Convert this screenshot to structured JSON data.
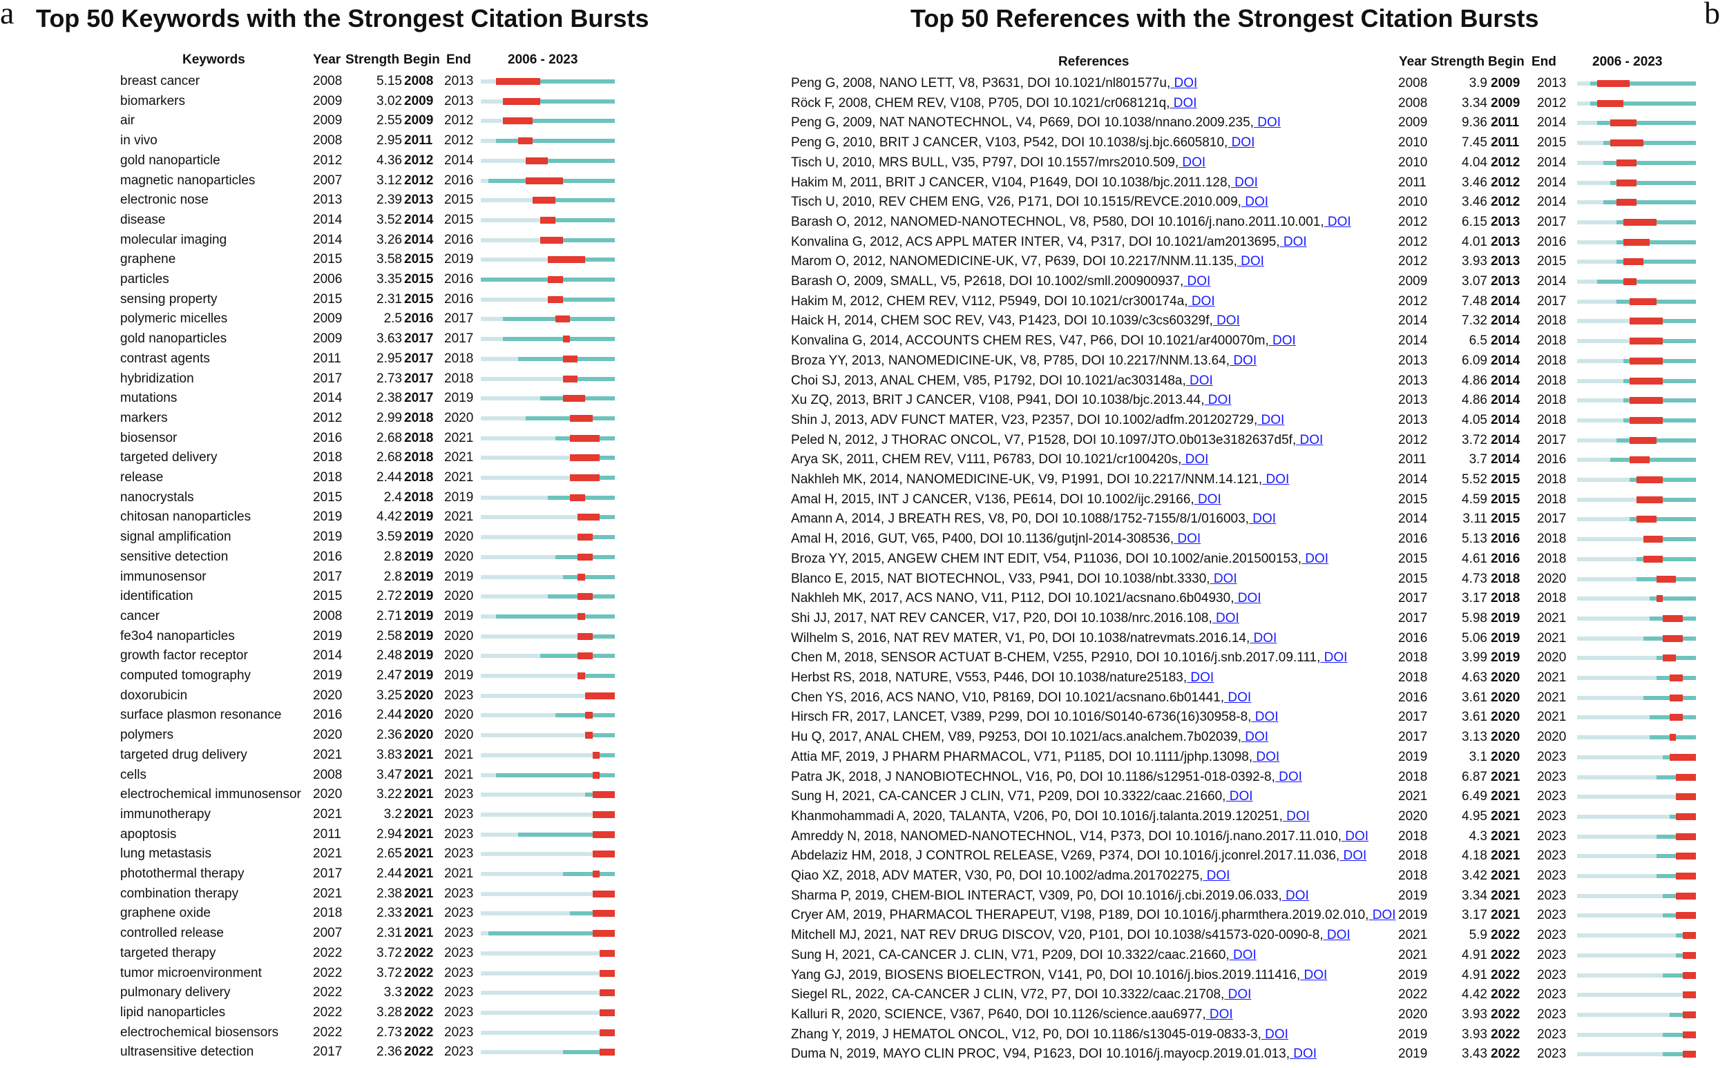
{
  "colors": {
    "baseline": "#cfe6e8",
    "published": "#6dc3bd",
    "burst": "#e43a2f",
    "doi": "#1a1aff"
  },
  "chart_data": [
    {
      "type": "table",
      "panel": "a",
      "title": "Top 50 Keywords with the Strongest Citation Bursts",
      "columns": [
        "Keywords",
        "Year",
        "Strength",
        "Begin",
        "End",
        "2006 - 2023"
      ],
      "range": [
        2006,
        2023
      ],
      "rows": [
        [
          "breast cancer",
          2008,
          "5.15",
          2008,
          2013
        ],
        [
          "biomarkers",
          2009,
          "3.02",
          2009,
          2013
        ],
        [
          "air",
          2009,
          "2.55",
          2009,
          2012
        ],
        [
          "in vivo",
          2008,
          "2.95",
          2011,
          2012
        ],
        [
          "gold nanoparticle",
          2012,
          "4.36",
          2012,
          2014
        ],
        [
          "magnetic nanoparticles",
          2007,
          "3.12",
          2012,
          2016
        ],
        [
          "electronic nose",
          2013,
          "2.39",
          2013,
          2015
        ],
        [
          "disease",
          2014,
          "3.52",
          2014,
          2015
        ],
        [
          "molecular imaging",
          2014,
          "3.26",
          2014,
          2016
        ],
        [
          "graphene",
          2015,
          "3.58",
          2015,
          2019
        ],
        [
          "particles",
          2006,
          "3.35",
          2015,
          2016
        ],
        [
          "sensing property",
          2015,
          "2.31",
          2015,
          2016
        ],
        [
          "polymeric micelles",
          2009,
          "2.5",
          2016,
          2017
        ],
        [
          "gold nanoparticles",
          2009,
          "3.63",
          2017,
          2017
        ],
        [
          "contrast agents",
          2011,
          "2.95",
          2017,
          2018
        ],
        [
          "hybridization",
          2017,
          "2.73",
          2017,
          2018
        ],
        [
          "mutations",
          2014,
          "2.38",
          2017,
          2019
        ],
        [
          "markers",
          2012,
          "2.99",
          2018,
          2020
        ],
        [
          "biosensor",
          2016,
          "2.68",
          2018,
          2021
        ],
        [
          "targeted delivery",
          2018,
          "2.68",
          2018,
          2021
        ],
        [
          "release",
          2018,
          "2.44",
          2018,
          2021
        ],
        [
          "nanocrystals",
          2015,
          "2.4",
          2018,
          2019
        ],
        [
          "chitosan nanoparticles",
          2019,
          "4.42",
          2019,
          2021
        ],
        [
          "signal amplification",
          2019,
          "3.59",
          2019,
          2020
        ],
        [
          "sensitive detection",
          2016,
          "2.8",
          2019,
          2020
        ],
        [
          "immunosensor",
          2017,
          "2.8",
          2019,
          2019
        ],
        [
          "identification",
          2015,
          "2.72",
          2019,
          2020
        ],
        [
          "cancer",
          2008,
          "2.71",
          2019,
          2019
        ],
        [
          "fe3o4 nanoparticles",
          2019,
          "2.58",
          2019,
          2020
        ],
        [
          "growth factor receptor",
          2014,
          "2.48",
          2019,
          2020
        ],
        [
          "computed tomography",
          2019,
          "2.47",
          2019,
          2019
        ],
        [
          "doxorubicin",
          2020,
          "3.25",
          2020,
          2023
        ],
        [
          "surface plasmon resonance",
          2016,
          "2.44",
          2020,
          2020
        ],
        [
          "polymers",
          2020,
          "2.36",
          2020,
          2020
        ],
        [
          "targeted drug delivery",
          2021,
          "3.83",
          2021,
          2021
        ],
        [
          "cells",
          2008,
          "3.47",
          2021,
          2021
        ],
        [
          "electrochemical immunosensor",
          2020,
          "3.22",
          2021,
          2023
        ],
        [
          "immunotherapy",
          2021,
          "3.2",
          2021,
          2023
        ],
        [
          "apoptosis",
          2011,
          "2.94",
          2021,
          2023
        ],
        [
          "lung metastasis",
          2021,
          "2.65",
          2021,
          2023
        ],
        [
          "photothermal therapy",
          2017,
          "2.44",
          2021,
          2021
        ],
        [
          "combination therapy",
          2021,
          "2.38",
          2021,
          2023
        ],
        [
          "graphene oxide",
          2018,
          "2.33",
          2021,
          2023
        ],
        [
          "controlled release",
          2007,
          "2.31",
          2021,
          2023
        ],
        [
          "targeted therapy",
          2022,
          "3.72",
          2022,
          2023
        ],
        [
          "tumor microenvironment",
          2022,
          "3.72",
          2022,
          2023
        ],
        [
          "pulmonary delivery",
          2022,
          "3.3",
          2022,
          2023
        ],
        [
          "lipid nanoparticles",
          2022,
          "3.28",
          2022,
          2023
        ],
        [
          "electrochemical biosensors",
          2022,
          "2.73",
          2022,
          2023
        ],
        [
          "ultrasensitive detection",
          2017,
          "2.36",
          2022,
          2023
        ]
      ]
    },
    {
      "type": "table",
      "panel": "b",
      "title": "Top 50 References with the Strongest Citation Bursts",
      "columns": [
        "References",
        "Year",
        "Strength",
        "Begin",
        "End",
        "2006 - 2023"
      ],
      "range": [
        2006,
        2023
      ],
      "doi_label": "DOI",
      "rows": [
        [
          "Peng G, 2008, NANO LETT, V8, P3631, DOI 10.1021/nl801577u,",
          2008,
          "3.9",
          2009,
          2013
        ],
        [
          "Röck F, 2008, CHEM REV, V108, P705, DOI 10.1021/cr068121q,",
          2008,
          "3.34",
          2009,
          2012
        ],
        [
          "Peng G, 2009, NAT NANOTECHNOL, V4, P669, DOI 10.1038/nnano.2009.235,",
          2009,
          "9.36",
          2011,
          2014
        ],
        [
          "Peng G, 2010, BRIT J CANCER, V103, P542, DOI 10.1038/sj.bjc.6605810,",
          2010,
          "7.45",
          2011,
          2015
        ],
        [
          "Tisch U, 2010, MRS BULL, V35, P797, DOI 10.1557/mrs2010.509,",
          2010,
          "4.04",
          2012,
          2014
        ],
        [
          "Hakim M, 2011, BRIT J CANCER, V104, P1649, DOI 10.1038/bjc.2011.128,",
          2011,
          "3.46",
          2012,
          2014
        ],
        [
          "Tisch U, 2010, REV CHEM ENG, V26, P171, DOI 10.1515/REVCE.2010.009,",
          2010,
          "3.46",
          2012,
          2014
        ],
        [
          "Barash O, 2012, NANOMED-NANOTECHNOL, V8, P580, DOI 10.1016/j.nano.2011.10.001,",
          2012,
          "6.15",
          2013,
          2017
        ],
        [
          "Konvalina G, 2012, ACS APPL MATER INTER, V4, P317, DOI 10.1021/am2013695,",
          2012,
          "4.01",
          2013,
          2016
        ],
        [
          "Marom O, 2012, NANOMEDICINE-UK, V7, P639, DOI 10.2217/NNM.11.135,",
          2012,
          "3.93",
          2013,
          2015
        ],
        [
          "Barash O, 2009, SMALL, V5, P2618, DOI 10.1002/smll.200900937,",
          2009,
          "3.07",
          2013,
          2014
        ],
        [
          "Hakim M, 2012, CHEM REV, V112, P5949, DOI 10.1021/cr300174a,",
          2012,
          "7.48",
          2014,
          2017
        ],
        [
          "Haick H, 2014, CHEM SOC REV, V43, P1423, DOI 10.1039/c3cs60329f,",
          2014,
          "7.32",
          2014,
          2018
        ],
        [
          "Konvalina G, 2014, ACCOUNTS CHEM RES, V47, P66, DOI 10.1021/ar400070m,",
          2014,
          "6.5",
          2014,
          2018
        ],
        [
          "Broza YY, 2013, NANOMEDICINE-UK, V8, P785, DOI 10.2217/NNM.13.64,",
          2013,
          "6.09",
          2014,
          2018
        ],
        [
          "Choi SJ, 2013, ANAL CHEM, V85, P1792, DOI 10.1021/ac303148a,",
          2013,
          "4.86",
          2014,
          2018
        ],
        [
          "Xu ZQ, 2013, BRIT J CANCER, V108, P941, DOI 10.1038/bjc.2013.44,",
          2013,
          "4.86",
          2014,
          2018
        ],
        [
          "Shin J, 2013, ADV FUNCT MATER, V23, P2357, DOI 10.1002/adfm.201202729,",
          2013,
          "4.05",
          2014,
          2018
        ],
        [
          "Peled N, 2012, J THORAC ONCOL, V7, P1528, DOI 10.1097/JTO.0b013e3182637d5f,",
          2012,
          "3.72",
          2014,
          2017
        ],
        [
          "Arya SK, 2011, CHEM REV, V111, P6783, DOI 10.1021/cr100420s,",
          2011,
          "3.7",
          2014,
          2016
        ],
        [
          "Nakhleh MK, 2014, NANOMEDICINE-UK, V9, P1991, DOI 10.2217/NNM.14.121,",
          2014,
          "5.52",
          2015,
          2018
        ],
        [
          "Amal H, 2015, INT J CANCER, V136, PE614, DOI 10.1002/ijc.29166,",
          2015,
          "4.59",
          2015,
          2018
        ],
        [
          "Amann A, 2014, J BREATH RES, V8, P0, DOI 10.1088/1752-7155/8/1/016003,",
          2014,
          "3.11",
          2015,
          2017
        ],
        [
          "Amal H, 2016, GUT, V65, P400, DOI 10.1136/gutjnl-2014-308536,",
          2016,
          "5.13",
          2016,
          2018
        ],
        [
          "Broza YY, 2015, ANGEW CHEM INT EDIT, V54, P11036, DOI 10.1002/anie.201500153,",
          2015,
          "4.61",
          2016,
          2018
        ],
        [
          "Blanco E, 2015, NAT BIOTECHNOL, V33, P941, DOI 10.1038/nbt.3330,",
          2015,
          "4.73",
          2018,
          2020
        ],
        [
          "Nakhleh MK, 2017, ACS NANO, V11, P112, DOI 10.1021/acsnano.6b04930,",
          2017,
          "3.17",
          2018,
          2018
        ],
        [
          "Shi JJ, 2017, NAT REV CANCER, V17, P20, DOI 10.1038/nrc.2016.108,",
          2017,
          "5.98",
          2019,
          2021
        ],
        [
          "Wilhelm S, 2016, NAT REV MATER, V1, P0, DOI 10.1038/natrevmats.2016.14,",
          2016,
          "5.06",
          2019,
          2021
        ],
        [
          "Chen M, 2018, SENSOR ACTUAT B-CHEM, V255, P2910, DOI 10.1016/j.snb.2017.09.111,",
          2018,
          "3.99",
          2019,
          2020
        ],
        [
          "Herbst RS, 2018, NATURE, V553, P446, DOI 10.1038/nature25183,",
          2018,
          "4.63",
          2020,
          2021
        ],
        [
          "Chen YS, 2016, ACS NANO, V10, P8169, DOI 10.1021/acsnano.6b01441,",
          2016,
          "3.61",
          2020,
          2021
        ],
        [
          "Hirsch FR, 2017, LANCET, V389, P299, DOI 10.1016/S0140-6736(16)30958-8,",
          2017,
          "3.61",
          2020,
          2021
        ],
        [
          "Hu Q, 2017, ANAL CHEM, V89, P9253, DOI 10.1021/acs.analchem.7b02039,",
          2017,
          "3.13",
          2020,
          2020
        ],
        [
          "Attia MF, 2019, J PHARM PHARMACOL, V71, P1185, DOI 10.1111/jphp.13098,",
          2019,
          "3.1",
          2020,
          2023
        ],
        [
          "Patra JK, 2018, J NANOBIOTECHNOL, V16, P0, DOI 10.1186/s12951-018-0392-8,",
          2018,
          "6.87",
          2021,
          2023
        ],
        [
          "Sung H, 2021, CA-CANCER J CLIN, V71, P209, DOI 10.3322/caac.21660,",
          2021,
          "6.49",
          2021,
          2023
        ],
        [
          "Khanmohammadi A, 2020, TALANTA, V206, P0, DOI 10.1016/j.talanta.2019.120251,",
          2020,
          "4.95",
          2021,
          2023
        ],
        [
          "Amreddy N, 2018, NANOMED-NANOTECHNOL, V14, P373, DOI 10.1016/j.nano.2017.11.010,",
          2018,
          "4.3",
          2021,
          2023
        ],
        [
          "Abdelaziz HM, 2018, J CONTROL RELEASE, V269, P374, DOI 10.1016/j.jconrel.2017.11.036,",
          2018,
          "4.18",
          2021,
          2023
        ],
        [
          "Qiao XZ, 2018, ADV MATER, V30, P0, DOI 10.1002/adma.201702275,",
          2018,
          "3.42",
          2021,
          2023
        ],
        [
          "Sharma P, 2019, CHEM-BIOL INTERACT, V309, P0, DOI 10.1016/j.cbi.2019.06.033,",
          2019,
          "3.34",
          2021,
          2023
        ],
        [
          "Cryer AM, 2019, PHARMACOL THERAPEUT, V198, P189, DOI 10.1016/j.pharmthera.2019.02.010,",
          2019,
          "3.17",
          2021,
          2023
        ],
        [
          "Mitchell MJ, 2021, NAT REV DRUG DISCOV, V20, P101, DOI 10.1038/s41573-020-0090-8,",
          2021,
          "5.9",
          2022,
          2023
        ],
        [
          "Sung H, 2021, CA-CANCER J. CLIN, V71, P209, DOI 10.3322/caac.21660,",
          2021,
          "4.91",
          2022,
          2023
        ],
        [
          "Yang GJ, 2019, BIOSENS BIOELECTRON, V141, P0, DOI 10.1016/j.bios.2019.111416,",
          2019,
          "4.91",
          2022,
          2023
        ],
        [
          "Siegel RL, 2022, CA-CANCER J CLIN, V72, P7, DOI 10.3322/caac.21708,",
          2022,
          "4.42",
          2022,
          2023
        ],
        [
          "Kalluri R, 2020, SCIENCE, V367, P640, DOI 10.1126/science.aau6977,",
          2020,
          "3.93",
          2022,
          2023
        ],
        [
          "Zhang Y, 2019, J HEMATOL ONCOL, V12, P0, DOI 10.1186/s13045-019-0833-3,",
          2019,
          "3.93",
          2022,
          2023
        ],
        [
          "Duma N, 2019, MAYO CLIN PROC, V94, P1623, DOI 10.1016/j.mayocp.2019.01.013,",
          2019,
          "3.43",
          2022,
          2023
        ]
      ]
    }
  ]
}
